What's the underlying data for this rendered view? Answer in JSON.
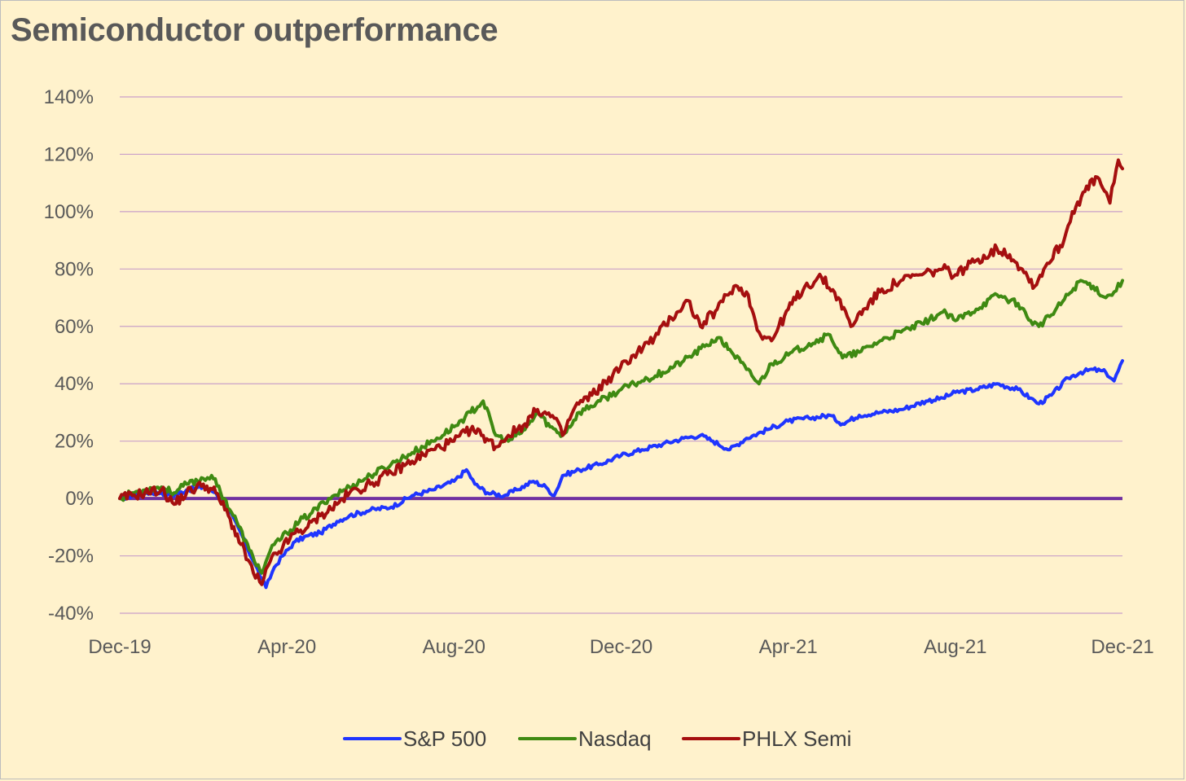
{
  "chart_data": {
    "type": "line",
    "title": "Semiconductor outperformance",
    "xlabel": "",
    "ylabel": "",
    "ylim": [
      -40,
      140
    ],
    "y_ticks": [
      140,
      120,
      100,
      80,
      60,
      40,
      20,
      0,
      -20,
      -40
    ],
    "y_tick_labels": [
      "140%",
      "120%",
      "100%",
      "80%",
      "60%",
      "40%",
      "20%",
      "0%",
      "-20%",
      "-40%"
    ],
    "x_tick_labels": [
      "Dec-19",
      "Apr-20",
      "Aug-20",
      "Dec-20",
      "Apr-21",
      "Aug-21",
      "Dec-21"
    ],
    "x_range_months": [
      0,
      24
    ],
    "grid": "horizontal",
    "legend_position": "bottom",
    "zero_line_color": "#7030a0",
    "grid_color": "#c9a0c9",
    "series": [
      {
        "name": "S&P 500",
        "color": "#1f35ff",
        "points": [
          [
            0,
            0
          ],
          [
            0.3,
            1
          ],
          [
            0.6,
            2
          ],
          [
            1.0,
            2
          ],
          [
            1.3,
            1
          ],
          [
            1.6,
            3
          ],
          [
            2.0,
            4
          ],
          [
            2.3,
            2
          ],
          [
            2.6,
            -4
          ],
          [
            2.9,
            -12
          ],
          [
            3.2,
            -22
          ],
          [
            3.4,
            -28
          ],
          [
            3.5,
            -31
          ],
          [
            3.7,
            -24
          ],
          [
            3.9,
            -20
          ],
          [
            4.2,
            -15
          ],
          [
            4.5,
            -13
          ],
          [
            4.8,
            -12
          ],
          [
            5.2,
            -8
          ],
          [
            5.5,
            -6
          ],
          [
            6.0,
            -4
          ],
          [
            6.5,
            -3
          ],
          [
            7.0,
            1
          ],
          [
            7.5,
            3
          ],
          [
            8.0,
            6
          ],
          [
            8.3,
            10
          ],
          [
            8.5,
            5
          ],
          [
            8.8,
            2
          ],
          [
            9.2,
            1
          ],
          [
            9.5,
            3
          ],
          [
            9.9,
            6
          ],
          [
            10.2,
            4
          ],
          [
            10.4,
            1
          ],
          [
            10.6,
            8
          ],
          [
            11.0,
            10
          ],
          [
            11.5,
            12
          ],
          [
            12.0,
            15
          ],
          [
            12.5,
            17
          ],
          [
            13.0,
            19
          ],
          [
            13.5,
            21
          ],
          [
            13.9,
            22
          ],
          [
            14.2,
            20
          ],
          [
            14.6,
            17
          ],
          [
            15.0,
            21
          ],
          [
            15.5,
            24
          ],
          [
            16.0,
            27
          ],
          [
            16.5,
            28
          ],
          [
            17.0,
            29
          ],
          [
            17.3,
            26
          ],
          [
            17.7,
            29
          ],
          [
            18.2,
            30
          ],
          [
            18.7,
            31
          ],
          [
            19.3,
            34
          ],
          [
            19.7,
            35
          ],
          [
            20.0,
            37
          ],
          [
            20.5,
            38
          ],
          [
            21.0,
            40
          ],
          [
            21.5,
            38
          ],
          [
            21.8,
            35
          ],
          [
            22.0,
            33
          ],
          [
            22.3,
            36
          ],
          [
            22.7,
            42
          ],
          [
            23.0,
            44
          ],
          [
            23.3,
            45
          ],
          [
            23.6,
            44
          ],
          [
            23.8,
            41
          ],
          [
            24.0,
            48
          ]
        ]
      },
      {
        "name": "Nasdaq",
        "color": "#3f8a12",
        "points": [
          [
            0,
            0
          ],
          [
            0.3,
            2
          ],
          [
            0.6,
            3
          ],
          [
            1.0,
            4
          ],
          [
            1.3,
            2
          ],
          [
            1.6,
            5
          ],
          [
            2.0,
            7
          ],
          [
            2.2,
            8
          ],
          [
            2.5,
            0
          ],
          [
            2.8,
            -8
          ],
          [
            3.1,
            -18
          ],
          [
            3.4,
            -26
          ],
          [
            3.5,
            -22
          ],
          [
            3.7,
            -16
          ],
          [
            4.0,
            -12
          ],
          [
            4.3,
            -8
          ],
          [
            4.6,
            -5
          ],
          [
            5.0,
            0
          ],
          [
            5.5,
            4
          ],
          [
            6.0,
            8
          ],
          [
            6.5,
            12
          ],
          [
            7.0,
            16
          ],
          [
            7.5,
            20
          ],
          [
            8.0,
            25
          ],
          [
            8.4,
            30
          ],
          [
            8.7,
            34
          ],
          [
            9.0,
            22
          ],
          [
            9.3,
            20
          ],
          [
            9.7,
            24
          ],
          [
            10.0,
            30
          ],
          [
            10.3,
            25
          ],
          [
            10.6,
            22
          ],
          [
            11.0,
            30
          ],
          [
            11.5,
            34
          ],
          [
            12.0,
            38
          ],
          [
            12.5,
            41
          ],
          [
            13.0,
            44
          ],
          [
            13.5,
            48
          ],
          [
            14.0,
            53
          ],
          [
            14.3,
            56
          ],
          [
            14.6,
            52
          ],
          [
            15.0,
            45
          ],
          [
            15.3,
            40
          ],
          [
            15.6,
            47
          ],
          [
            16.0,
            50
          ],
          [
            16.5,
            54
          ],
          [
            17.0,
            57
          ],
          [
            17.3,
            49
          ],
          [
            17.7,
            51
          ],
          [
            18.2,
            55
          ],
          [
            18.7,
            58
          ],
          [
            19.2,
            61
          ],
          [
            19.7,
            65
          ],
          [
            20.0,
            62
          ],
          [
            20.5,
            66
          ],
          [
            21.0,
            71
          ],
          [
            21.5,
            68
          ],
          [
            21.8,
            62
          ],
          [
            22.0,
            60
          ],
          [
            22.3,
            64
          ],
          [
            22.7,
            71
          ],
          [
            23.0,
            76
          ],
          [
            23.3,
            74
          ],
          [
            23.6,
            70
          ],
          [
            23.8,
            72
          ],
          [
            24.0,
            76
          ]
        ]
      },
      {
        "name": "PHLX Semi",
        "color": "#a50f0f",
        "points": [
          [
            0,
            0
          ],
          [
            0.3,
            1
          ],
          [
            0.6,
            2
          ],
          [
            1.0,
            3
          ],
          [
            1.3,
            -2
          ],
          [
            1.6,
            2
          ],
          [
            2.0,
            5
          ],
          [
            2.3,
            2
          ],
          [
            2.6,
            -6
          ],
          [
            2.9,
            -16
          ],
          [
            3.2,
            -26
          ],
          [
            3.4,
            -30
          ],
          [
            3.6,
            -22
          ],
          [
            3.9,
            -17
          ],
          [
            4.2,
            -12
          ],
          [
            4.5,
            -10
          ],
          [
            4.8,
            -6
          ],
          [
            5.2,
            -2
          ],
          [
            5.5,
            2
          ],
          [
            6.0,
            5
          ],
          [
            6.5,
            9
          ],
          [
            7.0,
            13
          ],
          [
            7.5,
            17
          ],
          [
            8.0,
            20
          ],
          [
            8.4,
            24
          ],
          [
            8.7,
            22
          ],
          [
            9.0,
            18
          ],
          [
            9.3,
            22
          ],
          [
            9.7,
            26
          ],
          [
            10.0,
            31
          ],
          [
            10.4,
            28
          ],
          [
            10.6,
            22
          ],
          [
            10.9,
            32
          ],
          [
            11.3,
            36
          ],
          [
            11.8,
            43
          ],
          [
            12.3,
            50
          ],
          [
            12.8,
            56
          ],
          [
            13.2,
            63
          ],
          [
            13.6,
            69
          ],
          [
            13.9,
            60
          ],
          [
            14.3,
            66
          ],
          [
            14.7,
            74
          ],
          [
            15.0,
            72
          ],
          [
            15.3,
            58
          ],
          [
            15.6,
            55
          ],
          [
            16.0,
            66
          ],
          [
            16.4,
            74
          ],
          [
            16.8,
            77
          ],
          [
            17.2,
            70
          ],
          [
            17.5,
            60
          ],
          [
            17.8,
            66
          ],
          [
            18.2,
            72
          ],
          [
            18.7,
            76
          ],
          [
            19.2,
            78
          ],
          [
            19.7,
            80
          ],
          [
            20.0,
            78
          ],
          [
            20.5,
            83
          ],
          [
            21.0,
            87
          ],
          [
            21.3,
            85
          ],
          [
            21.6,
            80
          ],
          [
            21.9,
            74
          ],
          [
            22.2,
            82
          ],
          [
            22.6,
            90
          ],
          [
            22.8,
            100
          ],
          [
            23.1,
            107
          ],
          [
            23.4,
            112
          ],
          [
            23.7,
            103
          ],
          [
            23.9,
            118
          ],
          [
            24.0,
            115
          ]
        ]
      }
    ]
  }
}
